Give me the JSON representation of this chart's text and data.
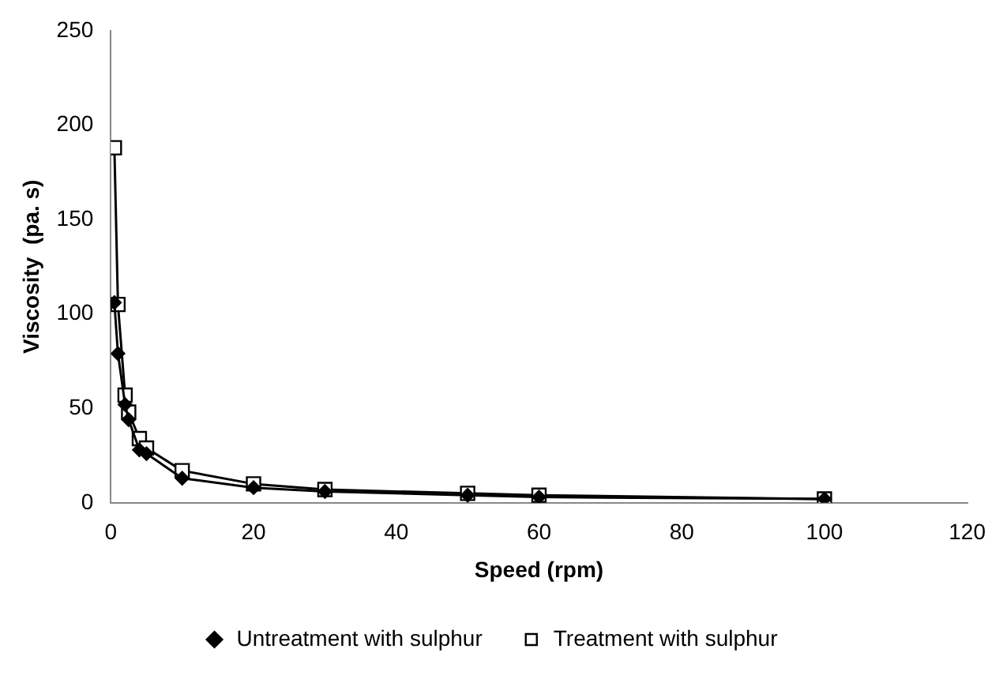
{
  "chart_data": {
    "type": "line",
    "xlabel": "Speed (rpm)",
    "ylabel": "Viscosity  (pa. s)",
    "xlim": [
      0,
      120
    ],
    "xticks": [
      0,
      20,
      40,
      60,
      80,
      100,
      120
    ],
    "ylim": [
      0,
      250
    ],
    "yticks": [
      0,
      50,
      100,
      150,
      200,
      250
    ],
    "grid": false,
    "legend": "bottom",
    "line_style": "solid",
    "series": [
      {
        "name": "Untreatment with sulphur",
        "color": "#000000",
        "marker": "diamond",
        "x": [
          0.5,
          1,
          2,
          2.5,
          4,
          5,
          10,
          20,
          30,
          50,
          60,
          100
        ],
        "values": [
          106,
          79,
          52,
          44,
          28,
          26,
          13,
          8,
          6,
          4,
          3,
          2
        ]
      },
      {
        "name": "Treatment with sulphur",
        "color": "#000000",
        "marker": "square",
        "x": [
          0.5,
          1,
          2,
          2.5,
          4,
          5,
          10,
          20,
          30,
          50,
          60,
          100
        ],
        "values": [
          188,
          105,
          57,
          48,
          34,
          29,
          17,
          10,
          7,
          5,
          4,
          2
        ]
      }
    ]
  }
}
